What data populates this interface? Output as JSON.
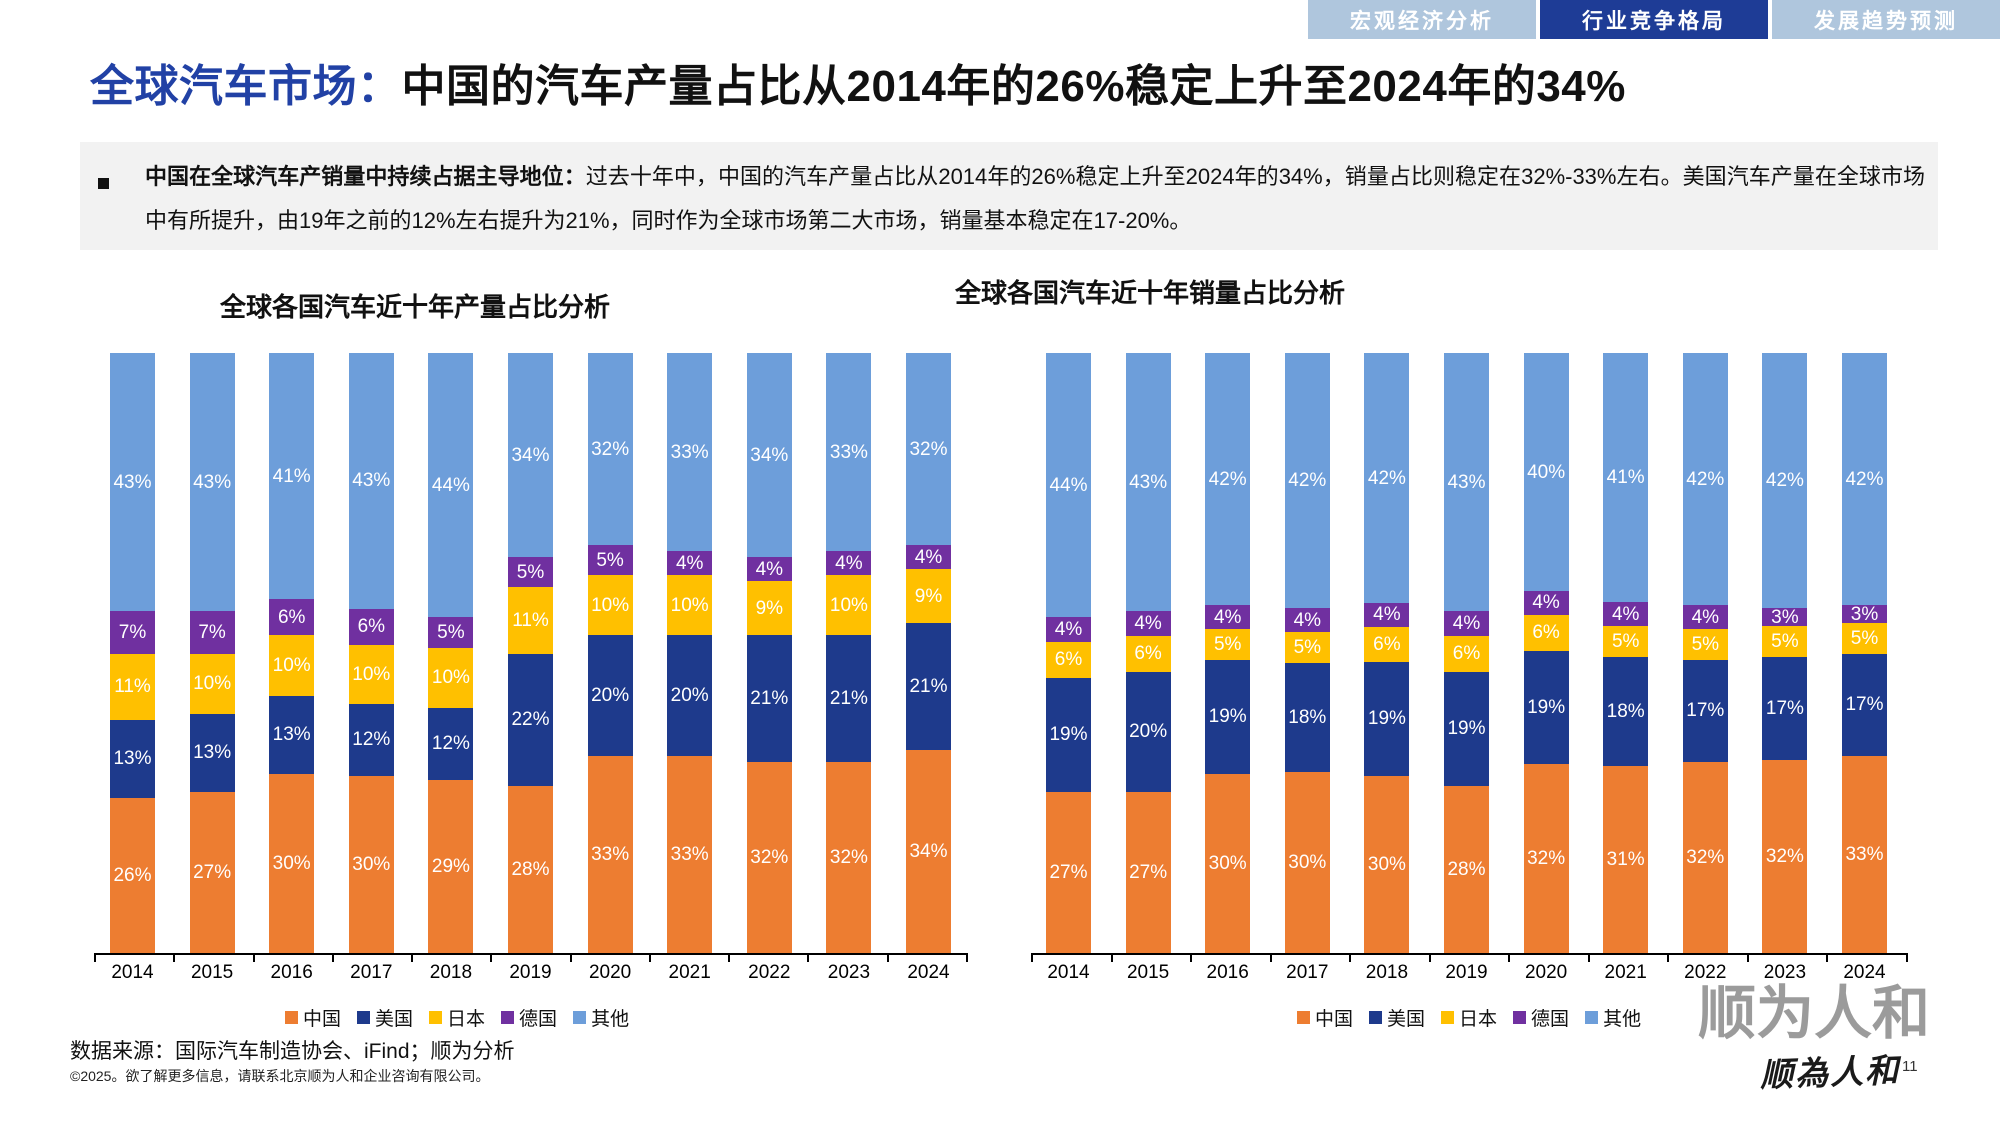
{
  "tabs": [
    {
      "label": "宏观经济分析",
      "active": false
    },
    {
      "label": "行业竞争格局",
      "active": true
    },
    {
      "label": "发展趋势预测",
      "active": false
    }
  ],
  "title": {
    "highlight": "全球汽车市场：",
    "rest": "中国的汽车产量占比从2014年的26%稳定上升至2024年的34%"
  },
  "summary": {
    "lead": "中国在全球汽车产销量中持续占据主导地位：",
    "body": "过去十年中，中国的汽车产量占比从2014年的26%稳定上升至2024年的34%，销量占比则稳定在32%-33%左右。美国汽车产量在全球市场中有所提升，由19年之前的12%左右提升为21%，同时作为全球市场第二大市场，销量基本稳定在17-20%。"
  },
  "chart_data": [
    {
      "type": "bar",
      "stacked": true,
      "title": "全球各国汽车近十年产量占比分析",
      "categories": [
        "2014",
        "2015",
        "2016",
        "2017",
        "2018",
        "2019",
        "2020",
        "2021",
        "2022",
        "2023",
        "2024"
      ],
      "unit": "%",
      "ylim": [
        0,
        100
      ],
      "legend_position": "bottom",
      "series": [
        {
          "name": "中国",
          "color": "#ED7D31",
          "values": [
            26,
            27,
            30,
            30,
            29,
            28,
            33,
            33,
            32,
            32,
            34
          ]
        },
        {
          "name": "美国",
          "color": "#1E3A8C",
          "values": [
            13,
            13,
            13,
            12,
            12,
            22,
            20,
            20,
            21,
            21,
            21
          ]
        },
        {
          "name": "日本",
          "color": "#FFC000",
          "values": [
            11,
            10,
            10,
            10,
            10,
            11,
            10,
            10,
            9,
            10,
            9
          ]
        },
        {
          "name": "德国",
          "color": "#7030A0",
          "values": [
            7,
            7,
            6,
            6,
            5,
            5,
            5,
            4,
            4,
            4,
            4
          ]
        },
        {
          "name": "其他",
          "color": "#6D9EDA",
          "values": [
            43,
            43,
            41,
            43,
            44,
            34,
            32,
            33,
            34,
            33,
            32
          ]
        }
      ]
    },
    {
      "type": "bar",
      "stacked": true,
      "title": "全球各国汽车近十年销量占比分析",
      "categories": [
        "2014",
        "2015",
        "2016",
        "2017",
        "2018",
        "2019",
        "2020",
        "2021",
        "2022",
        "2023",
        "2024"
      ],
      "unit": "%",
      "ylim": [
        0,
        100
      ],
      "legend_position": "bottom",
      "series": [
        {
          "name": "中国",
          "color": "#ED7D31",
          "values": [
            27,
            27,
            30,
            30,
            30,
            28,
            32,
            31,
            32,
            32,
            33
          ]
        },
        {
          "name": "美国",
          "color": "#1E3A8C",
          "values": [
            19,
            20,
            19,
            18,
            19,
            19,
            19,
            18,
            17,
            17,
            17
          ]
        },
        {
          "name": "日本",
          "color": "#FFC000",
          "values": [
            6,
            6,
            5,
            5,
            6,
            6,
            6,
            5,
            5,
            5,
            5
          ]
        },
        {
          "name": "德国",
          "color": "#7030A0",
          "values": [
            4,
            4,
            4,
            4,
            4,
            4,
            4,
            4,
            4,
            3,
            3
          ]
        },
        {
          "name": "其他",
          "color": "#6D9EDA",
          "values": [
            44,
            43,
            42,
            42,
            42,
            43,
            40,
            41,
            42,
            42,
            42
          ]
        }
      ]
    }
  ],
  "footer": {
    "source": "数据来源：国际汽车制造协会、iFind；顺为分析",
    "copyright": "©2025。欲了解更多信息，请联系北京顺为人和企业咨询有限公司。",
    "watermark": "顺为人和",
    "logo": "顺為人和",
    "page_number": "11"
  },
  "colors": {
    "tab_active": "#1E3C96",
    "tab_inactive": "#AFC6DD",
    "title_accent_blue": "#2141A5",
    "summary_box_bg": "#F2F2F2",
    "watermark_gray": "#9B9B9B"
  }
}
